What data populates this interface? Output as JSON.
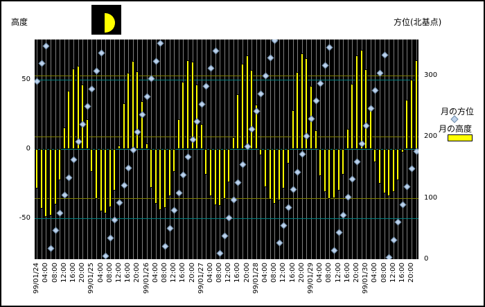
{
  "titles": {
    "left_axis": "高度",
    "right_axis": "方位(北基点)"
  },
  "legend": {
    "items": [
      {
        "label": "月の方位",
        "marker": "diamond"
      },
      {
        "label": "月の高度",
        "marker": "bar"
      }
    ]
  },
  "colors": {
    "bar_fill": "#FFFF00",
    "bar_border": "#000000",
    "marker_fill": "#BDD2EC",
    "marker_border": "#6E8CA8",
    "grid_vertical": "#808080",
    "grid_altitude": "#008080",
    "grid_azimuth": "#808000",
    "plot_background": "#000000",
    "page_background": "#FFFFFF",
    "text": "#000000"
  },
  "chart_data": {
    "type": "combo",
    "x": {
      "start": "99/01/24 00:00",
      "step_hours": 2,
      "count": 84
    },
    "x_tick_labels": [
      {
        "i": 0,
        "t": "99/01/24"
      },
      {
        "i": 2,
        "t": "04:00"
      },
      {
        "i": 4,
        "t": "08:00"
      },
      {
        "i": 6,
        "t": "12:00"
      },
      {
        "i": 8,
        "t": "16:00"
      },
      {
        "i": 10,
        "t": "20:00"
      },
      {
        "i": 12,
        "t": "99/01/25"
      },
      {
        "i": 14,
        "t": "04:00"
      },
      {
        "i": 16,
        "t": "08:00"
      },
      {
        "i": 18,
        "t": "12:00"
      },
      {
        "i": 20,
        "t": "16:00"
      },
      {
        "i": 22,
        "t": "20:00"
      },
      {
        "i": 24,
        "t": "99/01/26"
      },
      {
        "i": 26,
        "t": "04:00"
      },
      {
        "i": 28,
        "t": "08:00"
      },
      {
        "i": 30,
        "t": "12:00"
      },
      {
        "i": 32,
        "t": "16:00"
      },
      {
        "i": 34,
        "t": "20:00"
      },
      {
        "i": 36,
        "t": "99/01/27"
      },
      {
        "i": 38,
        "t": "04:00"
      },
      {
        "i": 40,
        "t": "08:00"
      },
      {
        "i": 42,
        "t": "12:00"
      },
      {
        "i": 44,
        "t": "16:00"
      },
      {
        "i": 46,
        "t": "20:00"
      },
      {
        "i": 48,
        "t": "99/01/28"
      },
      {
        "i": 50,
        "t": "04:00"
      },
      {
        "i": 52,
        "t": "08:00"
      },
      {
        "i": 54,
        "t": "12:00"
      },
      {
        "i": 56,
        "t": "16:00"
      },
      {
        "i": 58,
        "t": "20:00"
      },
      {
        "i": 60,
        "t": "99/01/29"
      },
      {
        "i": 62,
        "t": "04:00"
      },
      {
        "i": 64,
        "t": "08:00"
      },
      {
        "i": 66,
        "t": "12:00"
      },
      {
        "i": 68,
        "t": "16:00"
      },
      {
        "i": 70,
        "t": "20:00"
      },
      {
        "i": 72,
        "t": "99/01/30"
      },
      {
        "i": 74,
        "t": "04:00"
      },
      {
        "i": 76,
        "t": "08:00"
      },
      {
        "i": 78,
        "t": "12:00"
      },
      {
        "i": 80,
        "t": "16:00"
      },
      {
        "i": 82,
        "t": "20:00"
      }
    ],
    "left_axis": {
      "label": "高度",
      "range": [
        -79,
        79
      ],
      "ticks": [
        {
          "label": "50",
          "value": 50
        },
        {
          "label": "0",
          "value": 0
        },
        {
          "label": "-50",
          "value": -50
        }
      ]
    },
    "right_axis": {
      "label": "方位(北基点)",
      "range": [
        0,
        359
      ],
      "ticks": [
        {
          "label": "300",
          "value": 300
        },
        {
          "label": "200",
          "value": 200
        },
        {
          "label": "100",
          "value": 100
        },
        {
          "label": "0",
          "value": 0
        }
      ]
    },
    "gridlines": {
      "left_values": [
        50,
        0,
        -50
      ],
      "right_values": [
        300,
        200,
        100
      ],
      "vertical_every_points": 1
    },
    "series": [
      {
        "name": "月の高度",
        "type": "bar",
        "axis": "left",
        "values": [
          -28.3,
          -42.9,
          -49.1,
          -48.1,
          -40,
          -22.7,
          15.3,
          41.9,
          58.2,
          59.9,
          46.6,
          21.5,
          -16.6,
          -36,
          -44.9,
          -46.7,
          -41.9,
          -29.8,
          2.7,
          32.8,
          54.9,
          63.3,
          55.8,
          34.3,
          4,
          -28.1,
          -39.7,
          -44.2,
          -42.3,
          -33.9,
          -16.4,
          21.5,
          48.7,
          63.8,
          63,
          46.4,
          18,
          -18.7,
          -33.8,
          -40.6,
          -41.2,
          -36,
          -24,
          8.3,
          39.7,
          61.3,
          67.6,
          57,
          32,
          -4.3,
          -27.3,
          -36.5,
          -39.5,
          -36.9,
          -28.4,
          -10.3,
          28.2,
          55.6,
          69.2,
          65.5,
          45.3,
          13.7,
          -19.3,
          -30.9,
          -35.9,
          -35.7,
          -30.2,
          -18.4,
          14.6,
          46.9,
          67.6,
          71.5,
          57.4,
          28.8,
          -9.6,
          -25.1,
          -32,
          -33.8,
          -30.8,
          -22.6,
          -2.4,
          35.4,
          50,
          64
        ]
      },
      {
        "name": "月の方位",
        "type": "scatter",
        "axis": "right",
        "values": [
          291,
          320,
          349,
          18,
          47,
          76,
          105,
          134,
          163,
          192,
          221,
          250,
          279,
          308,
          337,
          6,
          35,
          64,
          93,
          121,
          150,
          179,
          208,
          237,
          266,
          295,
          324,
          353,
          22,
          51,
          80,
          109,
          138,
          167,
          196,
          225,
          254,
          283,
          312,
          341,
          10,
          39,
          68,
          97,
          126,
          155,
          184,
          213,
          242,
          271,
          300,
          329,
          358,
          27,
          56,
          85,
          114,
          143,
          172,
          201,
          230,
          259,
          288,
          317,
          346,
          15,
          44,
          73,
          102,
          131,
          160,
          189,
          218,
          247,
          276,
          305,
          334,
          3,
          32,
          61,
          90,
          119,
          148,
          177
        ]
      }
    ]
  }
}
